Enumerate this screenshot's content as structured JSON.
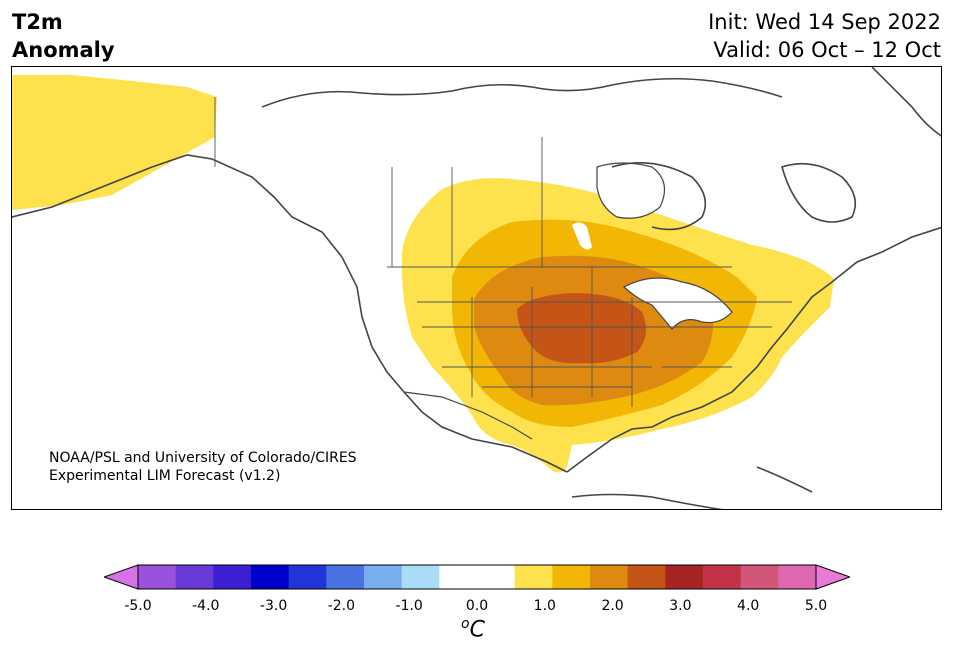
{
  "title": {
    "variable": "T2m",
    "field": "Anomaly",
    "init": "Init: Wed 14 Sep 2022",
    "valid": "Valid: 06 Oct – 12 Oct"
  },
  "credit": {
    "line1": "NOAA/PSL and University of Colorado/CIRES",
    "line2": "Experimental LIM Forecast (v1.2)"
  },
  "colorbar": {
    "unit_prefix": "o",
    "unit": "C",
    "colors": [
      "#d672e8",
      "#9a52dc",
      "#6a3ad8",
      "#3c1fd0",
      "#0000cc",
      "#2435d8",
      "#4a72e2",
      "#76aef0",
      "#aadcf8",
      "#ffffff",
      "#ffffff",
      "#fde24e",
      "#f2b705",
      "#de8a10",
      "#c45516",
      "#a82323",
      "#c23348",
      "#d2567a",
      "#de68b0",
      "#ea7ada"
    ],
    "ticks": [
      "-5.0",
      "-4.0",
      "-3.0",
      "-2.0",
      "-1.0",
      "0.0",
      "1.0",
      "2.0",
      "3.0",
      "4.0",
      "5.0"
    ]
  },
  "anomaly_legend_colors": {
    "level_0_5": "#fde24e",
    "level_1_0": "#f2b705",
    "level_1_5": "#de8a10",
    "level_2_0": "#c45516"
  }
}
